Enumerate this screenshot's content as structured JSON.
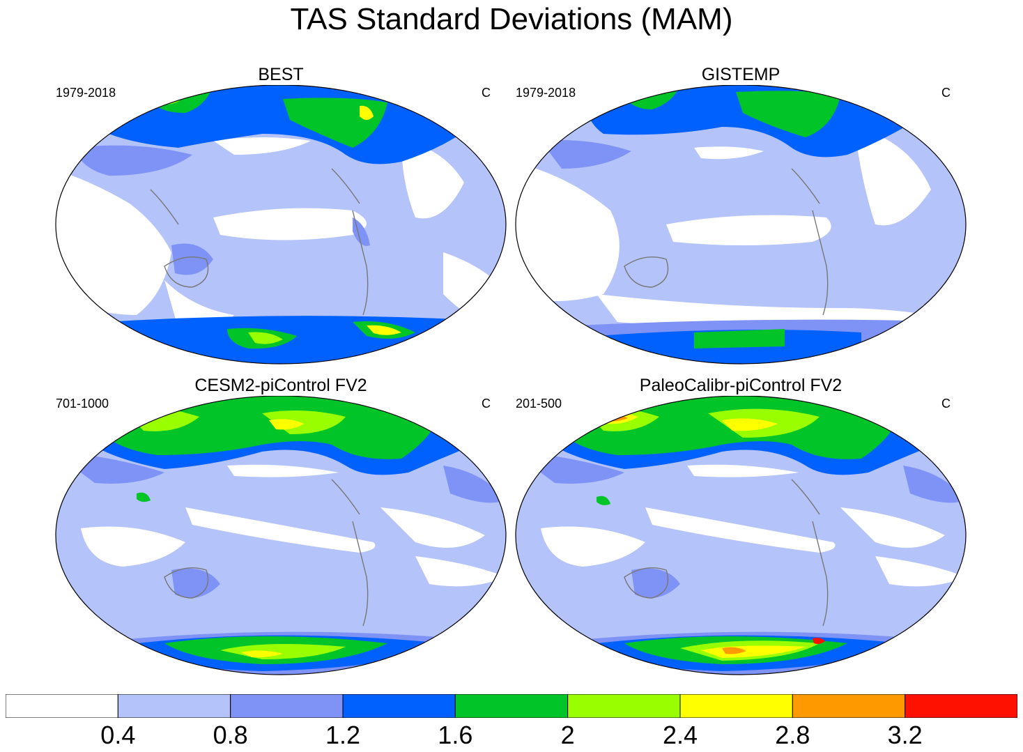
{
  "title": "TAS Standard Deviations (MAM)",
  "panels": [
    {
      "title": "BEST",
      "period": "1979-2018",
      "units": "C"
    },
    {
      "title": "GISTEMP",
      "period": "1979-2018",
      "units": "C"
    },
    {
      "title": "CESM2-piControl FV2",
      "period": "701-1000",
      "units": "C"
    },
    {
      "title": "PaleoCalibr-piControl FV2",
      "period": "201-500",
      "units": "C"
    }
  ],
  "colorbar": {
    "labels": [
      "0.4",
      "0.8",
      "1.2",
      "1.6",
      "2",
      "2.4",
      "2.8",
      "3.2"
    ],
    "colors": [
      "#ffffff",
      "#b4c3f9",
      "#7e93f5",
      "#0061fe",
      "#00c428",
      "#99ff00",
      "#ffff00",
      "#ff9900",
      "#ff1100"
    ]
  }
}
